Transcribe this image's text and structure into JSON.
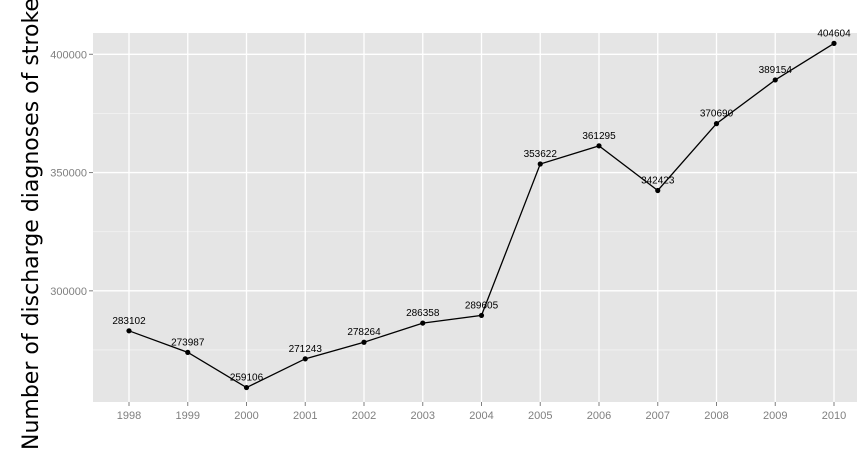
{
  "chart_data": {
    "type": "line",
    "title": "",
    "xlabel": "",
    "ylabel": "Number of discharge diagnoses of stroke",
    "x": [
      "1998",
      "1999",
      "2000",
      "2001",
      "2002",
      "2003",
      "2004",
      "2005",
      "2006",
      "2007",
      "2008",
      "2009",
      "2010"
    ],
    "series": [
      {
        "values": [
          283102,
          273987,
          259106,
          271243,
          278264,
          286358,
          289605,
          353622,
          361295,
          342423,
          370690,
          389154,
          404604
        ]
      }
    ],
    "yticks": [
      "300000",
      "350000",
      "400000"
    ],
    "ylim": [
      253000,
      409000
    ],
    "grid": true,
    "legend": "none",
    "colors": {
      "panel_background": "#e5e5e5",
      "grid_major": "#ffffff",
      "grid_minor": "#f2f2f2",
      "line": "#000000",
      "tick_text": "#7f7f7f"
    }
  }
}
